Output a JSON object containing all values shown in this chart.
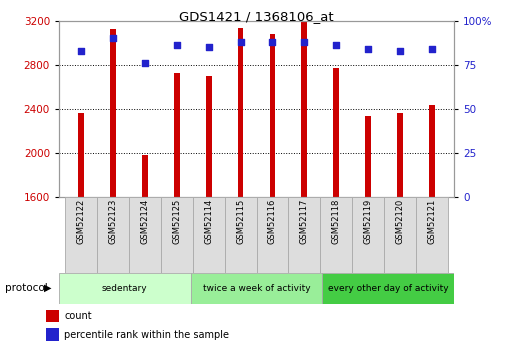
{
  "title": "GDS1421 / 1368106_at",
  "samples": [
    "GSM52122",
    "GSM52123",
    "GSM52124",
    "GSM52125",
    "GSM52114",
    "GSM52115",
    "GSM52116",
    "GSM52117",
    "GSM52118",
    "GSM52119",
    "GSM52120",
    "GSM52121"
  ],
  "counts": [
    2360,
    3120,
    1980,
    2720,
    2700,
    3130,
    3080,
    3190,
    2770,
    2330,
    2360,
    2430
  ],
  "percentiles": [
    83,
    90,
    76,
    86,
    85,
    88,
    88,
    88,
    86,
    84,
    83,
    84
  ],
  "ylim_left": [
    1600,
    3200
  ],
  "ylim_right": [
    0,
    100
  ],
  "yticks_left": [
    1600,
    2000,
    2400,
    2800,
    3200
  ],
  "yticks_right": [
    0,
    25,
    50,
    75,
    100
  ],
  "bar_color": "#cc0000",
  "dot_color": "#2222cc",
  "group_labels": [
    "sedentary",
    "twice a week of activity",
    "every other day of activity"
  ],
  "group_starts": [
    0,
    4,
    8
  ],
  "group_ends": [
    4,
    8,
    12
  ],
  "group_colors": [
    "#ccffcc",
    "#99ee99",
    "#44cc44"
  ],
  "protocol_label": "protocol",
  "legend_count": "count",
  "legend_percentile": "percentile rank within the sample",
  "tick_label_color_left": "#cc0000",
  "tick_label_color_right": "#2222cc",
  "bar_width": 0.18,
  "dot_size": 18
}
